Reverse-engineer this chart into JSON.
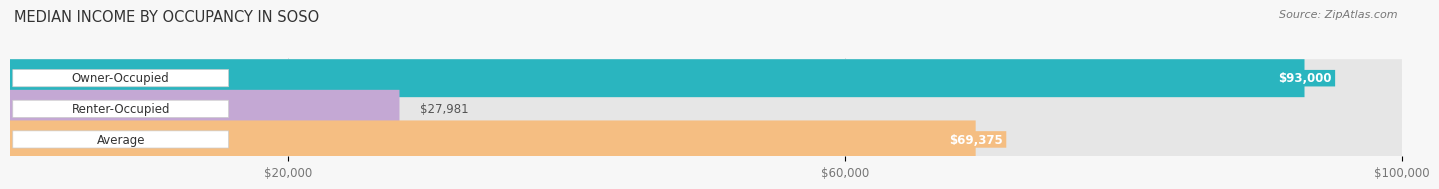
{
  "title": "MEDIAN INCOME BY OCCUPANCY IN SOSO",
  "source": "Source: ZipAtlas.com",
  "categories": [
    "Owner-Occupied",
    "Renter-Occupied",
    "Average"
  ],
  "values": [
    93000,
    27981,
    69375
  ],
  "labels": [
    "$93,000",
    "$27,981",
    "$69,375"
  ],
  "bar_colors": [
    "#2ab5bf",
    "#c4a8d4",
    "#f5be82"
  ],
  "xlim": [
    0,
    100000
  ],
  "xticks": [
    20000,
    60000,
    100000
  ],
  "xtick_labels": [
    "$20,000",
    "$60,000",
    "$100,000"
  ],
  "background_color": "#f7f7f7",
  "bar_bg_color": "#e6e6e6",
  "title_fontsize": 10.5,
  "label_fontsize": 8.5,
  "tick_fontsize": 8.5,
  "source_fontsize": 8,
  "bar_height": 0.62,
  "bar_gap": 1.0,
  "value_label_inside": [
    true,
    false,
    true
  ],
  "value_label_color_inside": [
    "white",
    "#555555",
    "white"
  ]
}
